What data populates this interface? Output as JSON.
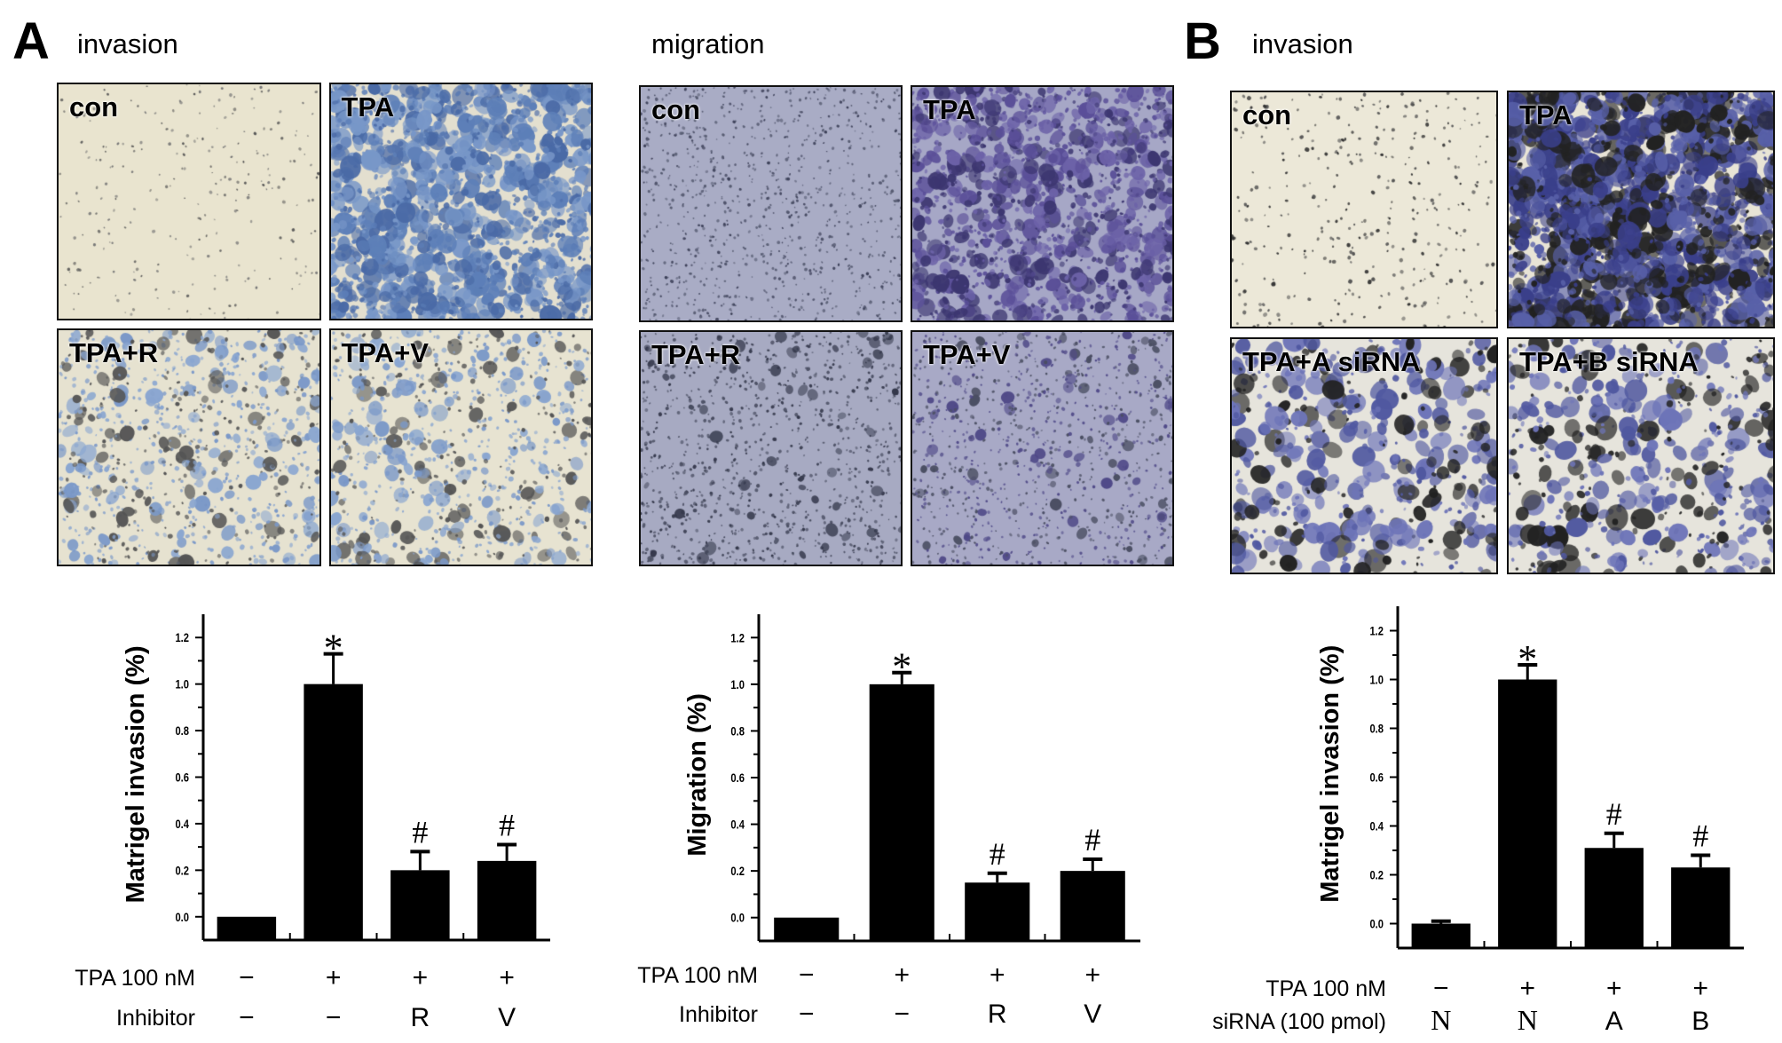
{
  "figure": {
    "panel_A": {
      "letter": "A",
      "invasion_title": "invasion",
      "migration_title": "migration",
      "invasion_images": [
        "con",
        "TPA",
        "TPA+R",
        "TPA+V"
      ],
      "migration_images": [
        "con",
        "TPA",
        "TPA+R",
        "TPA+V"
      ]
    },
    "panel_B": {
      "letter": "B",
      "invasion_title": "invasion",
      "invasion_images": [
        "con",
        "TPA",
        "TPA+A siRNA",
        "TPA+B siRNA"
      ]
    }
  },
  "chart_data": [
    {
      "type": "bar",
      "panel": "A",
      "title": "",
      "ylabel": "Matrigel invasion (%)",
      "xlabel": "",
      "ylim": [
        -0.1,
        1.3
      ],
      "yticks": [
        "0.0",
        "0.2",
        "0.4",
        "0.6",
        "0.8",
        "1.0",
        "1.2"
      ],
      "categories": [
        "con",
        "TPA",
        "TPA+R",
        "TPA+V"
      ],
      "values": [
        0.0,
        1.0,
        0.2,
        0.24
      ],
      "error": [
        0.0,
        0.13,
        0.08,
        0.07
      ],
      "annotations": [
        "",
        "*",
        "#",
        "#"
      ],
      "condition_rows": [
        {
          "label": "TPA 100 nM",
          "values": [
            "−",
            "+",
            "+",
            "+"
          ]
        },
        {
          "label": "Inhibitor",
          "values": [
            "−",
            "−",
            "R",
            "V"
          ]
        }
      ]
    },
    {
      "type": "bar",
      "panel": "A",
      "title": "",
      "ylabel": "Migration (%)",
      "xlabel": "",
      "ylim": [
        -0.1,
        1.3
      ],
      "yticks": [
        "0.0",
        "0.2",
        "0.4",
        "0.6",
        "0.8",
        "1.0",
        "1.2"
      ],
      "categories": [
        "con",
        "TPA",
        "TPA+R",
        "TPA+V"
      ],
      "values": [
        0.0,
        1.0,
        0.15,
        0.2
      ],
      "error": [
        0.0,
        0.05,
        0.04,
        0.05
      ],
      "annotations": [
        "",
        "*",
        "#",
        "#"
      ],
      "condition_rows": [
        {
          "label": "TPA 100 nM",
          "values": [
            "−",
            "+",
            "+",
            "+"
          ]
        },
        {
          "label": "Inhibitor",
          "values": [
            "−",
            "−",
            "R",
            "V"
          ]
        }
      ]
    },
    {
      "type": "bar",
      "panel": "B",
      "title": "",
      "ylabel": "Matrigel invasion (%)",
      "xlabel": "",
      "ylim": [
        -0.1,
        1.3
      ],
      "yticks": [
        "0.0",
        "0.2",
        "0.4",
        "0.6",
        "0.8",
        "1.0",
        "1.2"
      ],
      "categories": [
        "con",
        "TPA",
        "TPA+A siRNA",
        "TPA+B siRNA"
      ],
      "values": [
        0.0,
        1.0,
        0.31,
        0.23
      ],
      "error": [
        0.01,
        0.06,
        0.06,
        0.05
      ],
      "annotations": [
        "",
        "*",
        "#",
        "#"
      ],
      "condition_rows": [
        {
          "label": "TPA 100 nM",
          "values": [
            "−",
            "+",
            "+",
            "+"
          ]
        },
        {
          "label": "siRNA (100 pmol)",
          "values": [
            "N",
            "N",
            "A",
            "B"
          ]
        }
      ]
    }
  ]
}
